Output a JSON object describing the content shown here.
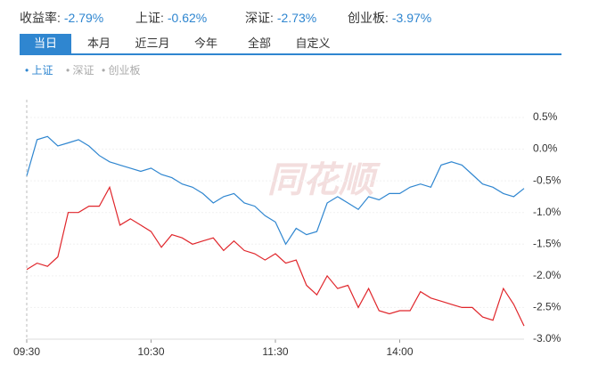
{
  "header": {
    "stats": [
      {
        "label": "收益率:",
        "value": "-2.79%"
      },
      {
        "label": "上证:",
        "value": "-0.62%"
      },
      {
        "label": "深证:",
        "value": "-2.73%"
      },
      {
        "label": "创业板:",
        "value": "-3.97%"
      }
    ],
    "tabs": [
      "当日",
      "本月",
      "近三月",
      "今年",
      "全部",
      "自定义"
    ],
    "active_tab": 0,
    "legend": [
      "上证",
      "深证",
      "创业板"
    ],
    "active_legend": 0
  },
  "chart_data": {
    "type": "line",
    "watermark": "同花顺",
    "x": [
      0,
      5,
      10,
      15,
      20,
      25,
      30,
      35,
      40,
      45,
      50,
      55,
      60,
      65,
      70,
      75,
      80,
      85,
      90,
      95,
      100,
      105,
      110,
      115,
      120,
      125,
      130,
      135,
      140,
      145,
      150,
      155,
      160,
      165,
      170,
      175,
      180,
      185,
      190,
      195,
      200,
      205,
      210,
      215,
      220,
      225,
      230,
      235,
      240
    ],
    "xlim": [
      0,
      240
    ],
    "xticks": [
      {
        "value": 0,
        "label": "09:30"
      },
      {
        "value": 60,
        "label": "10:30"
      },
      {
        "value": 120,
        "label": "11:30"
      },
      {
        "value": 180,
        "label": "14:00"
      }
    ],
    "ylim": [
      -3.0,
      0.5
    ],
    "yticks": [
      {
        "value": 0.5,
        "label": "0.5%"
      },
      {
        "value": 0,
        "label": "0.0%"
      },
      {
        "value": -0.5,
        "label": "-0.5%"
      },
      {
        "value": -1.0,
        "label": "-1.0%"
      },
      {
        "value": -1.5,
        "label": "-1.5%"
      },
      {
        "value": -2.0,
        "label": "-2.0%"
      },
      {
        "value": -2.5,
        "label": "-2.5%"
      },
      {
        "value": -3.0,
        "label": "-3.0%"
      }
    ],
    "grid": true,
    "series": [
      {
        "name": "上证",
        "color": "#2f86d0",
        "values": [
          -0.42,
          0.15,
          0.2,
          0.05,
          0.1,
          0.15,
          0.05,
          -0.1,
          -0.2,
          -0.25,
          -0.3,
          -0.35,
          -0.3,
          -0.4,
          -0.45,
          -0.55,
          -0.6,
          -0.7,
          -0.85,
          -0.75,
          -0.7,
          -0.85,
          -0.9,
          -1.05,
          -1.15,
          -1.5,
          -1.25,
          -1.35,
          -1.3,
          -0.85,
          -0.75,
          -0.85,
          -0.95,
          -0.75,
          -0.8,
          -0.7,
          -0.7,
          -0.6,
          -0.55,
          -0.6,
          -0.25,
          -0.2,
          -0.25,
          -0.4,
          -0.55,
          -0.6,
          -0.7,
          -0.75,
          -0.62
        ]
      },
      {
        "name": "收益率:",
        "color": "#e0262b",
        "values": [
          -1.9,
          -1.8,
          -1.85,
          -1.7,
          -1.0,
          -1.0,
          -0.9,
          -0.9,
          -0.6,
          -1.2,
          -1.1,
          -1.2,
          -1.3,
          -1.55,
          -1.35,
          -1.4,
          -1.5,
          -1.45,
          -1.4,
          -1.6,
          -1.45,
          -1.6,
          -1.65,
          -1.75,
          -1.65,
          -1.8,
          -1.75,
          -2.15,
          -2.3,
          -2.0,
          -2.2,
          -2.15,
          -2.5,
          -2.2,
          -2.55,
          -2.6,
          -2.55,
          -2.55,
          -2.25,
          -2.35,
          -2.4,
          -2.45,
          -2.5,
          -2.5,
          -2.65,
          -2.7,
          -2.2,
          -2.45,
          -2.79
        ]
      }
    ]
  }
}
